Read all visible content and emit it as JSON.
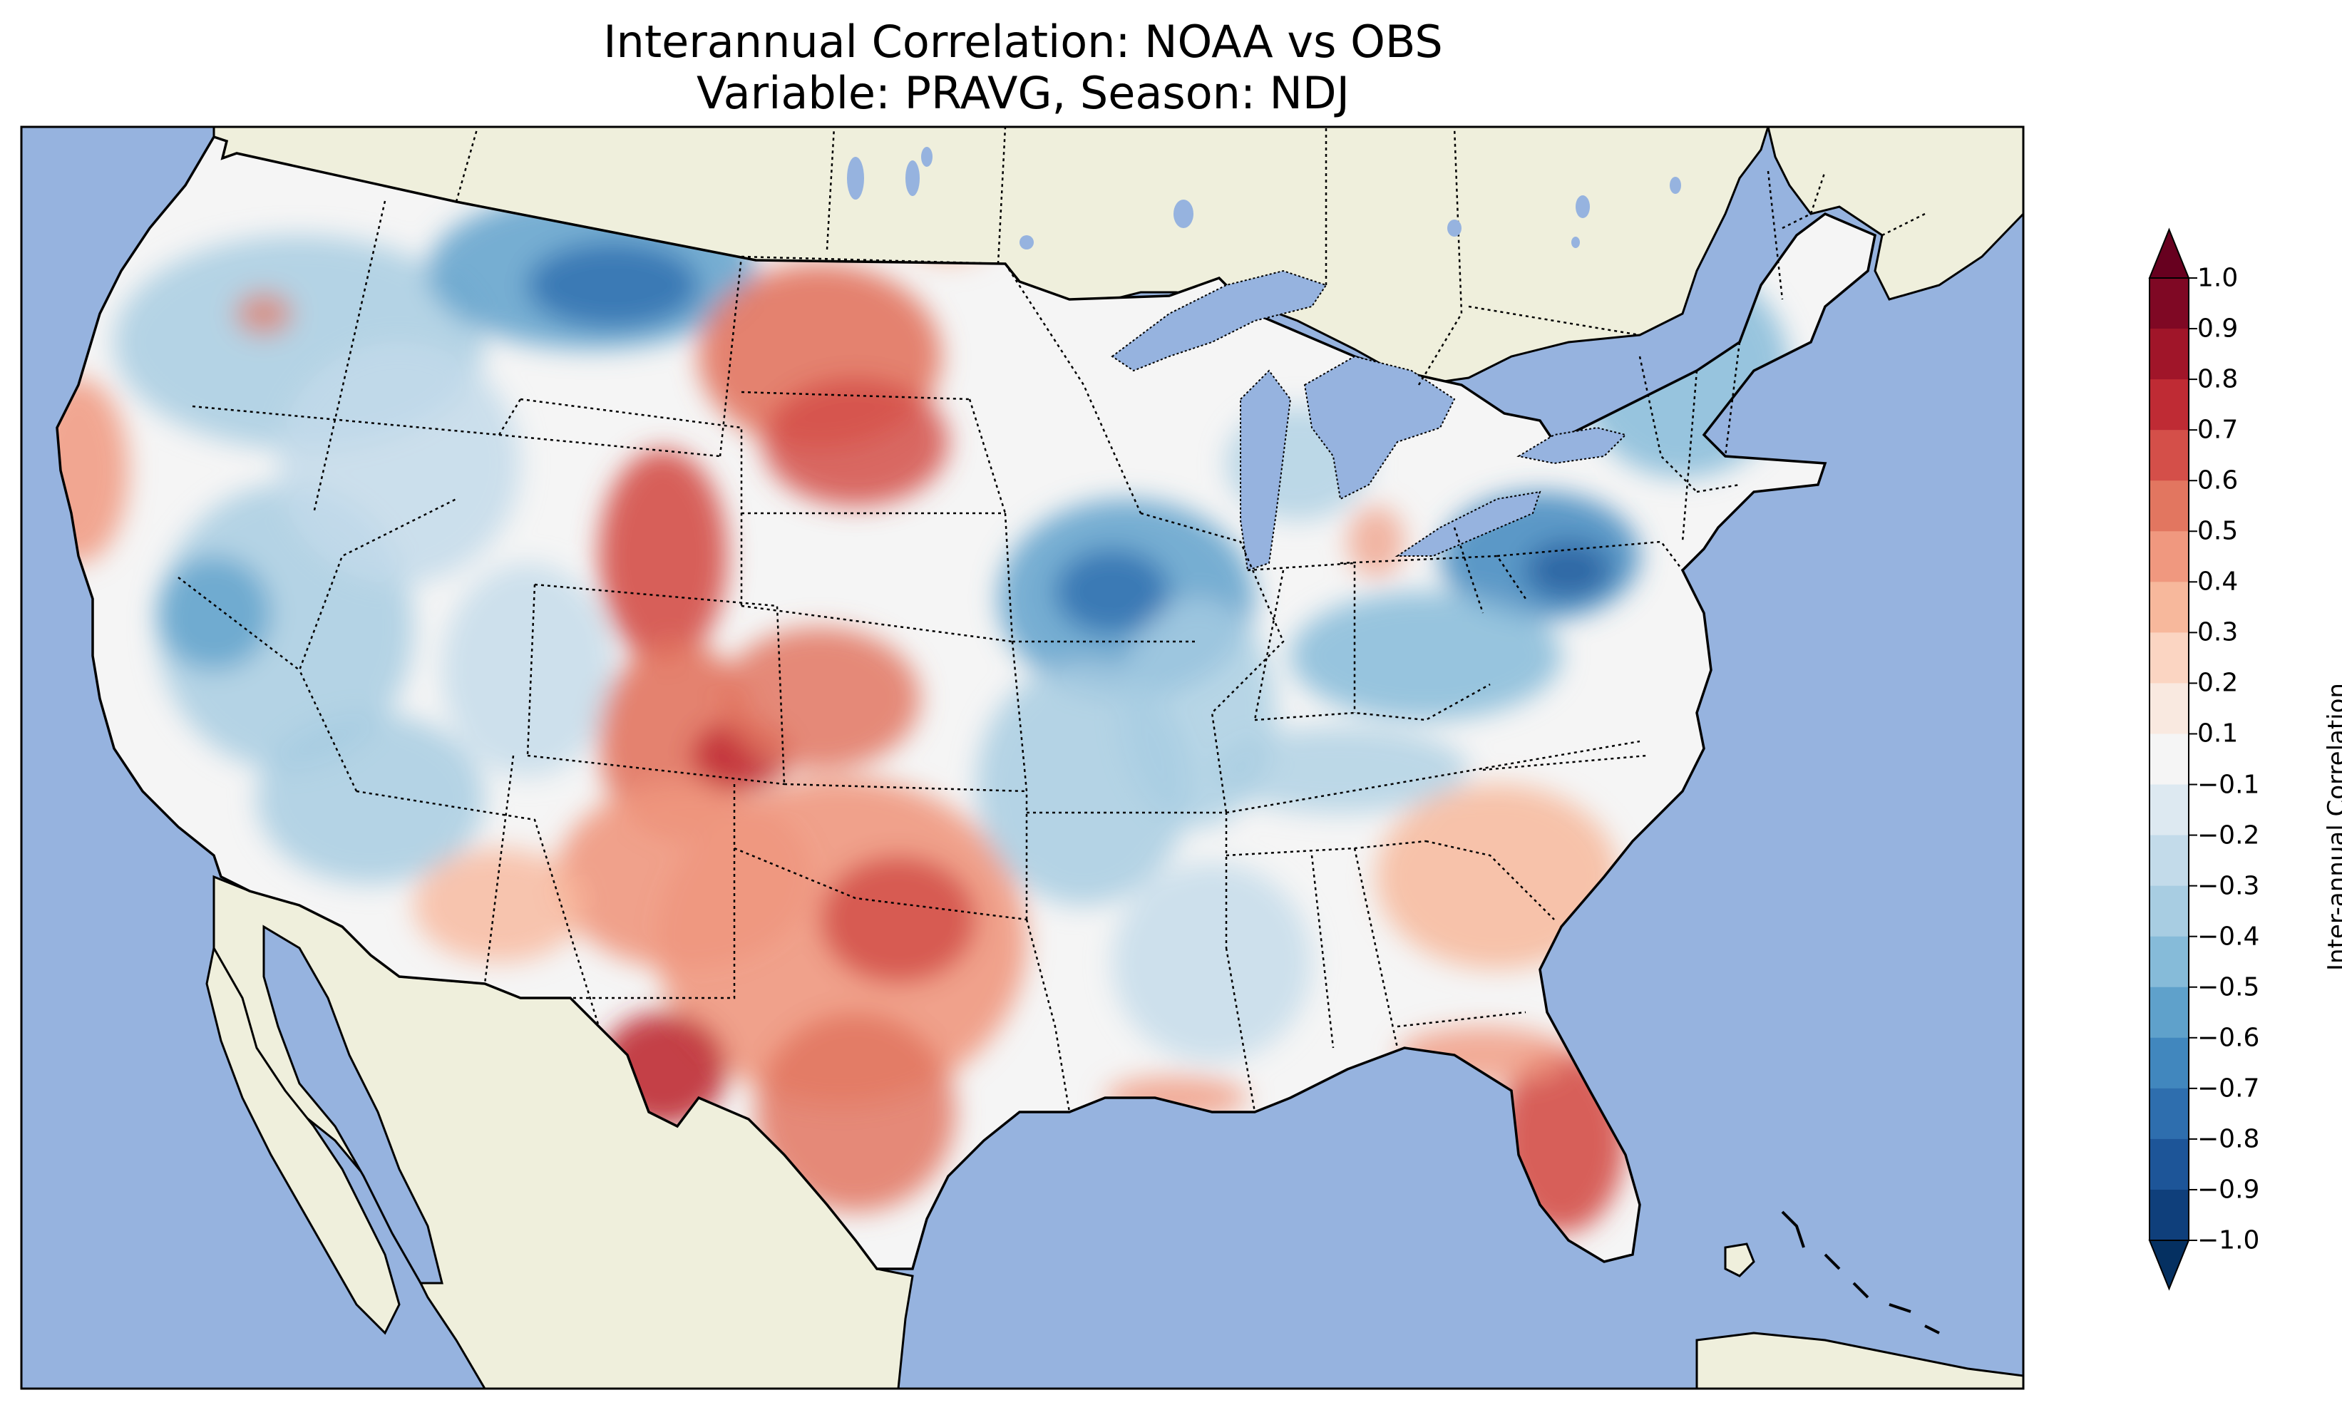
{
  "title": {
    "line1": "Interannual Correlation: NOAA vs OBS",
    "line2": "Variable: PRAVG, Season: NDJ"
  },
  "colorbar": {
    "label": "Inter-annual Correlation",
    "ticks": [
      "1.0",
      "0.9",
      "0.8",
      "0.7",
      "0.6",
      "0.5",
      "0.4",
      "0.3",
      "0.2",
      "0.1",
      "−0.1",
      "−0.2",
      "−0.3",
      "−0.4",
      "−0.5",
      "−0.6",
      "−0.7",
      "−0.8",
      "−0.9",
      "−1.0"
    ],
    "colors_top_to_bottom": [
      "#7f0824",
      "#a01529",
      "#bf2b34",
      "#d44f49",
      "#e27660",
      "#f0987f",
      "#f7b89c",
      "#fbd5c2",
      "#f9e9e0",
      "#f5f5f5",
      "#dde9f1",
      "#c3dbea",
      "#a8cde2",
      "#86bbd9",
      "#5fa1cb",
      "#4187be",
      "#2e6eae",
      "#1d5598",
      "#0f3f7b"
    ],
    "extend_top_color": "#67001f",
    "extend_bottom_color": "#053061"
  },
  "map": {
    "ocean_color": "#96b3df",
    "land_color": "#efefdc",
    "lake_color": "#96b3df"
  }
}
